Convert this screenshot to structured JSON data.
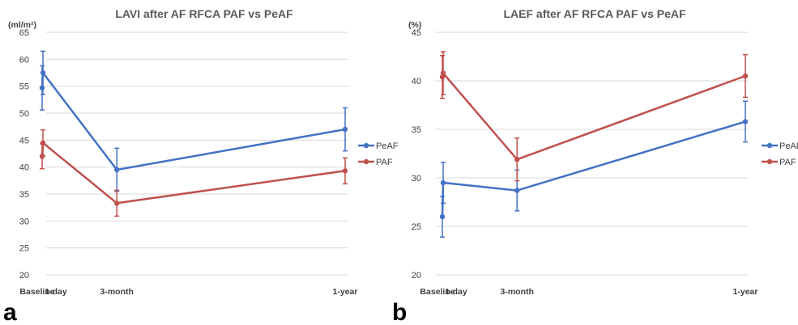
{
  "panels": [
    {
      "letter": "a",
      "chart_data": {
        "type": "line",
        "title": "LAVI after AF RFCA PAF vs PeAF",
        "ylabel": "(ml/m²)",
        "xlabel": "",
        "ylim": [
          20,
          65
        ],
        "yticks": [
          20,
          25,
          30,
          35,
          40,
          45,
          50,
          55,
          60,
          65
        ],
        "x_scale": "time",
        "categories": [
          "Baseline",
          "1-day",
          "3-month",
          "1-year"
        ],
        "x": [
          0,
          1,
          90,
          365
        ],
        "grid": true,
        "legend": "right",
        "series": [
          {
            "name": "PeAF",
            "color": "#4472c4",
            "values": [
              54.7,
              57.5,
              39.5,
              47.0
            ],
            "error": [
              4.1,
              4.0,
              4.0,
              4.0
            ]
          },
          {
            "name": "PAF",
            "color": "#c0504d",
            "values": [
              42.0,
              44.5,
              33.3,
              39.3
            ],
            "error": [
              2.3,
              2.4,
              2.4,
              2.4
            ]
          }
        ]
      }
    },
    {
      "letter": "b",
      "chart_data": {
        "type": "line",
        "title": "LAEF after AF RFCA PAF vs PeAF",
        "ylabel": "(%)",
        "xlabel": "",
        "ylim": [
          20,
          45
        ],
        "yticks": [
          20,
          25,
          30,
          35,
          40,
          45
        ],
        "x_scale": "time",
        "categories": [
          "Baseline",
          "1-day",
          "3-month",
          "1-year"
        ],
        "x": [
          0,
          1,
          90,
          365
        ],
        "grid": true,
        "legend": "right",
        "series": [
          {
            "name": "PeAF",
            "color": "#4472c4",
            "values": [
              26.0,
              29.5,
              28.7,
              35.8
            ],
            "error": [
              2.1,
              2.1,
              2.1,
              2.1
            ]
          },
          {
            "name": "PAF",
            "color": "#c0504d",
            "values": [
              40.4,
              40.8,
              31.9,
              40.5
            ],
            "error": [
              2.2,
              2.2,
              2.2,
              2.2
            ]
          }
        ]
      }
    }
  ]
}
